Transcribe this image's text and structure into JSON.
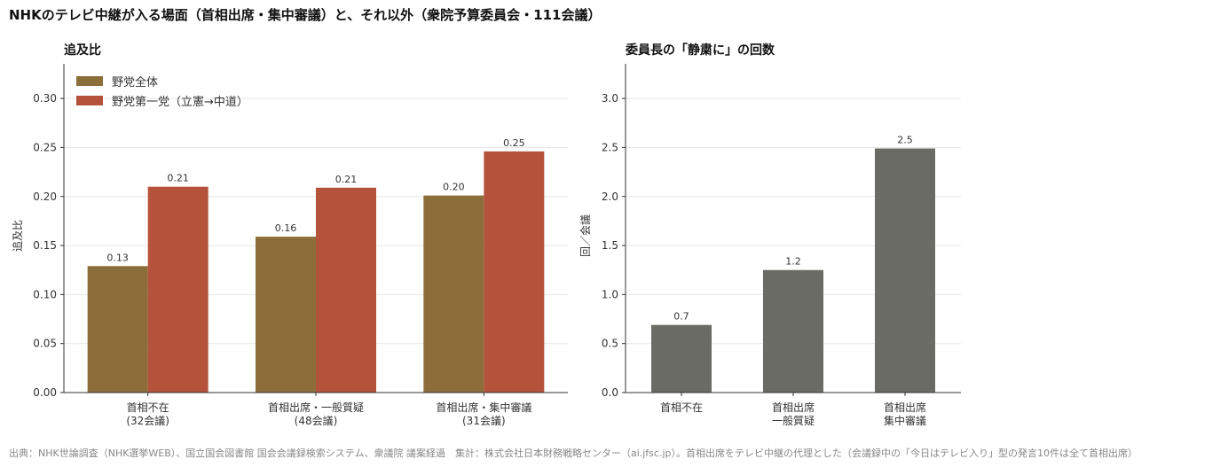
{
  "title": "NHKのテレビ中継が入る場面（首相出席・集中審議）と、それ以外（衆院予算委員会・111会議）",
  "footer": "出典：NHK世論調査（NHK選挙WEB）、国立国会図書館 国会会議録検索システム、衆議院 議案経過　集計：株式会社日本財務戦略センター（ai.jfsc.jp）。首相出席をテレビ中継の代理とした（会議録中の「今日はテレビ入り」型の発言10件は全て首相出席）",
  "colors": {
    "all_opposition": "#8B6E3A",
    "main_opposition": "#B5523B",
    "chair": "#6B6B66"
  },
  "chart_data": [
    {
      "type": "bar",
      "title": "追及比",
      "ylabel": "追及比",
      "ylim": [
        0,
        0.32
      ],
      "yticks": [
        "0.00",
        "0.05",
        "0.10",
        "0.15",
        "0.20",
        "0.25",
        "0.30"
      ],
      "ytick_values": [
        0,
        0.05,
        0.1,
        0.15,
        0.2,
        0.25,
        0.3
      ],
      "categories": [
        [
          "首相不在",
          "(32会議)"
        ],
        [
          "首相出席・一般質疑",
          "(48会議)"
        ],
        [
          "首相出席・集中審議",
          "(31会議)"
        ]
      ],
      "legend_position": "top-left",
      "grid": true,
      "series": [
        {
          "name": "野党全体",
          "values": [
            0.129,
            0.159,
            0.201
          ],
          "labels": [
            "0.13",
            "0.16",
            "0.20"
          ]
        },
        {
          "name": "野党第一党（立憲→中道）",
          "values": [
            0.21,
            0.209,
            0.246
          ],
          "labels": [
            "0.21",
            "0.21",
            "0.25"
          ]
        }
      ]
    },
    {
      "type": "bar",
      "title": "委員長の「静粛に」の回数",
      "ylabel": "回／会議",
      "ylim": [
        0,
        3.2
      ],
      "yticks": [
        "0.0",
        "0.5",
        "1.0",
        "1.5",
        "2.0",
        "2.5",
        "3.0"
      ],
      "ytick_values": [
        0,
        0.5,
        1.0,
        1.5,
        2.0,
        2.5,
        3.0
      ],
      "categories": [
        [
          "首相不在"
        ],
        [
          "首相出席",
          "一般質疑"
        ],
        [
          "首相出席",
          "集中審議"
        ]
      ],
      "grid": true,
      "series": [
        {
          "values": [
            0.69,
            1.25,
            2.49
          ],
          "labels": [
            "0.7",
            "1.2",
            "2.5"
          ]
        }
      ]
    }
  ]
}
